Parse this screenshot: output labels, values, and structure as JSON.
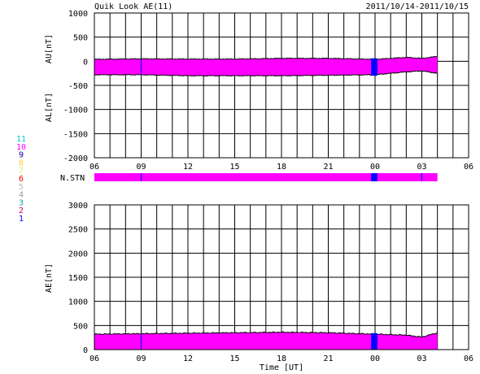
{
  "header": {
    "title": "Quik Look AE(11)",
    "date_range": "2011/10/14-2011/10/15"
  },
  "colors": {
    "magenta": "#ff00ff",
    "blue": "#0000ff",
    "grid": "#000000"
  },
  "x_ticks": [
    "06",
    "09",
    "12",
    "15",
    "18",
    "21",
    "00",
    "03",
    "06"
  ],
  "xlabel": "Time [UT]",
  "station_legend": {
    "label": "N.STN",
    "items": [
      {
        "num": "11",
        "color": "#00cccc"
      },
      {
        "num": "10",
        "color": "#ff00ff"
      },
      {
        "num": "9",
        "color": "#0000aa"
      },
      {
        "num": "8",
        "color": "#ffcc33"
      },
      {
        "num": "7",
        "color": "#ccee66"
      },
      {
        "num": "6",
        "color": "#ff0000"
      },
      {
        "num": "5",
        "color": "#bbbbbb"
      },
      {
        "num": "4",
        "color": "#999999"
      },
      {
        "num": "3",
        "color": "#00aaaa"
      },
      {
        "num": "2",
        "color": "#cc0066"
      },
      {
        "num": "1",
        "color": "#0000ff"
      }
    ]
  },
  "chart_data": [
    {
      "type": "area",
      "panel": "AU/AL",
      "ylabel_top": "AU[nT]",
      "ylabel_bottom": "AL[nT]",
      "ylim": [
        -2000,
        1000
      ],
      "yticks": [
        "1000",
        "500",
        "0",
        "-500",
        "-1000",
        "-1500",
        "-2000"
      ],
      "x_hours_ut": [
        6,
        9,
        12,
        15,
        18,
        21,
        24,
        26,
        27,
        28
      ],
      "xlim_hours": [
        6,
        30
      ],
      "series": [
        {
          "values": [
            40,
            50,
            45,
            45,
            60,
            60,
            40,
            80,
            60,
            100
          ]
        },
        {
          "values": [
            -280,
            -280,
            -300,
            -300,
            -300,
            -290,
            -280,
            -220,
            -200,
            -250
          ]
        }
      ]
    },
    {
      "type": "area",
      "panel": "N.STN",
      "x_hours_ut": [
        6,
        28
      ]
    },
    {
      "type": "area",
      "panel": "AE",
      "ylabel": "AE[nT]",
      "ylim": [
        0,
        3000
      ],
      "yticks": [
        "3000",
        "2500",
        "2000",
        "1500",
        "1000",
        "500",
        "0"
      ],
      "x_hours_ut": [
        6,
        9,
        12,
        15,
        18,
        21,
        24,
        26,
        27,
        28
      ],
      "xlim_hours": [
        6,
        30
      ],
      "values": [
        320,
        330,
        340,
        350,
        360,
        350,
        320,
        300,
        260,
        350
      ]
    }
  ]
}
